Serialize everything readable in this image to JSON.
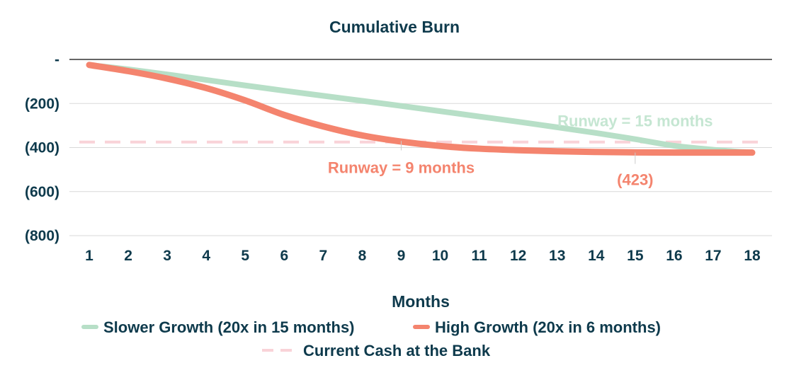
{
  "chart_data": {
    "type": "line",
    "title": "Cumulative Burn",
    "xlabel": "Months",
    "ylabel": "",
    "x": [
      1,
      2,
      3,
      4,
      5,
      6,
      7,
      8,
      9,
      10,
      11,
      12,
      13,
      14,
      15,
      16,
      17,
      18
    ],
    "ylim": [
      -800,
      0
    ],
    "yticks": [
      {
        "value": 0,
        "label": "-"
      },
      {
        "value": -200,
        "label": "(200)"
      },
      {
        "value": -400,
        "label": "(400)"
      },
      {
        "value": -600,
        "label": "(600)"
      },
      {
        "value": -800,
        "label": "(800)"
      }
    ],
    "grid": true,
    "legend_position": "bottom",
    "series": [
      {
        "name": "Slower Growth (20x in 15 months)",
        "color": "#b7dfc7",
        "values": [
          -25,
          -45,
          -68,
          -93,
          -118,
          -142,
          -165,
          -188,
          -211,
          -235,
          -259,
          -283,
          -308,
          -334,
          -362,
          -392,
          -410,
          -423
        ]
      },
      {
        "name": "High Growth (20x in 6 months)",
        "color": "#f4846e",
        "values": [
          -25,
          -53,
          -87,
          -130,
          -186,
          -252,
          -304,
          -345,
          -373,
          -393,
          -405,
          -412,
          -417,
          -420,
          -422,
          -423,
          -423,
          -423
        ]
      }
    ],
    "reference_line": {
      "name": "Current Cash at the Bank",
      "value": -375,
      "color": "#f9d3d8"
    },
    "annotations": [
      {
        "text": "Runway = 15 months",
        "x": 15,
        "y": -278,
        "color": "#c5e6d2"
      },
      {
        "text": "Runway = 9 months",
        "x": 9,
        "y": -490,
        "color": "#f4846e"
      },
      {
        "text": "(423)",
        "x": 15,
        "y": -545,
        "color": "#f4846e"
      }
    ]
  }
}
